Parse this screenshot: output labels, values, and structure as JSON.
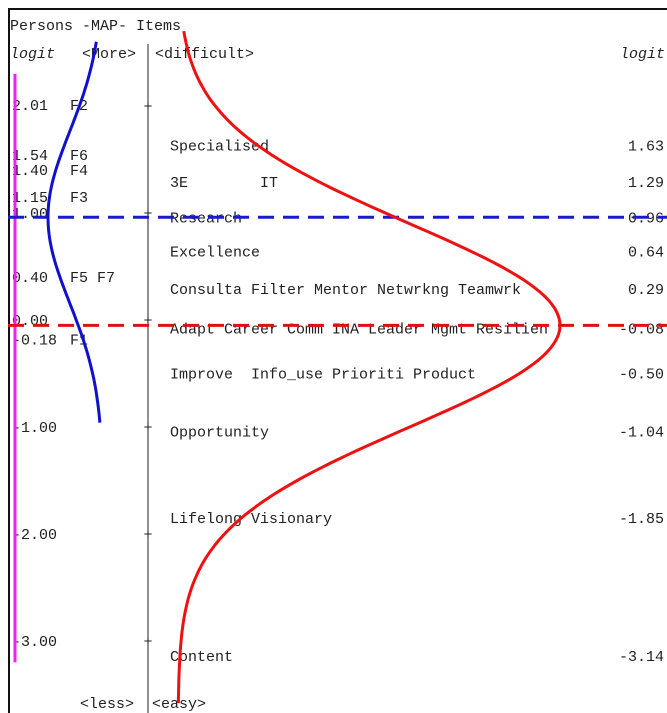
{
  "chart_data": {
    "type": "wright-map",
    "title": "Persons -MAP- Items",
    "left_axis_label": "logit",
    "right_axis_label": "logit",
    "top_person_label": "<More>",
    "top_item_label": "<difficult>",
    "bottom_person_label": "<less>",
    "bottom_item_label": "<easy>",
    "ylim": [
      -3.5,
      2.6
    ],
    "scale_ticks": [
      2,
      1,
      0,
      -1,
      -2,
      -3
    ],
    "persons": [
      {
        "logit_text": "2.01",
        "logit": 2.01,
        "label": "F2"
      },
      {
        "logit_text": "1.54",
        "logit": 1.54,
        "label": "F6"
      },
      {
        "logit_text": "1.40",
        "logit": 1.4,
        "label": "F4"
      },
      {
        "logit_text": "1.15",
        "logit": 1.15,
        "label": "F3"
      },
      {
        "logit_text": "1.00",
        "logit": 1.0,
        "label": ""
      },
      {
        "logit_text": "0.40",
        "logit": 0.4,
        "label": "F5 F7"
      },
      {
        "logit_text": "0.00",
        "logit": 0.0,
        "label": ""
      },
      {
        "logit_text": "-0.18",
        "logit": -0.18,
        "label": "F1"
      },
      {
        "logit_text": "-1.00",
        "logit": -1.0,
        "label": ""
      },
      {
        "logit_text": "-2.00",
        "logit": -2.0,
        "label": ""
      },
      {
        "logit_text": "-3.00",
        "logit": -3.0,
        "label": ""
      }
    ],
    "items": [
      {
        "label": "Specialised",
        "logit_text": "1.63",
        "logit": 1.63
      },
      {
        "label": "3E        IT",
        "logit_text": "1.29",
        "logit": 1.29
      },
      {
        "label": "Research",
        "logit_text": "0.96",
        "logit": 0.96
      },
      {
        "label": "Excellence",
        "logit_text": "0.64",
        "logit": 0.64
      },
      {
        "label": "Consulta Filter Mentor Netwrkng Teamwrk",
        "logit_text": "0.29",
        "logit": 0.29
      },
      {
        "label": "Adapt Career Comm INA Leader Mgmt Resilien",
        "logit_text": "-0.08",
        "logit": -0.08
      },
      {
        "label": "Improve  Info_use Prioriti Product",
        "logit_text": "-0.50",
        "logit": -0.5
      },
      {
        "label": "Opportunity",
        "logit_text": "-1.04",
        "logit": -1.04
      },
      {
        "label": "Lifelong Visionary",
        "logit_text": "-1.85",
        "logit": -1.85
      },
      {
        "label": "Content",
        "logit_text": "-3.14",
        "logit": -3.14
      }
    ],
    "person_mean_line_logit": 0.96,
    "item_mean_line_logit": -0.05,
    "person_distribution": {
      "mean": 0.96,
      "sd": 0.8
    },
    "item_distribution": {
      "mean": -0.05,
      "sd": 0.95
    },
    "colors": {
      "person_curve": "#1111cc",
      "item_curve": "#ee1111",
      "person_line": "#ee22ee",
      "person_mean_line": "#1a1acc",
      "item_mean_line": "#dd1111",
      "text": "#222222",
      "axis": "#222222"
    }
  }
}
